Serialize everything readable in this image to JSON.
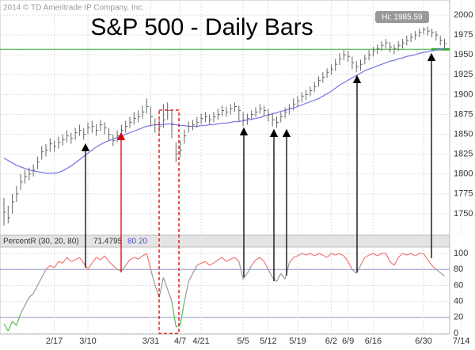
{
  "chart_data": {
    "type": "ohlc",
    "title": "S&P 500 - Daily Bars",
    "note": "2014 © TD Ameritrade IP Company, Inc.",
    "hi_label": "Hi: 1985.59",
    "bar_color": "#666",
    "grid": true,
    "categories": [
      null,
      null,
      null,
      null,
      null,
      null,
      null,
      null,
      null,
      null,
      null,
      null,
      "2/17",
      null,
      null,
      null,
      null,
      null,
      null,
      null,
      "3/10",
      null,
      null,
      null,
      null,
      null,
      null,
      null,
      null,
      null,
      null,
      null,
      null,
      null,
      null,
      "3/31",
      null,
      null,
      null,
      null,
      null,
      null,
      "4/7",
      null,
      null,
      null,
      null,
      "4/21",
      null,
      null,
      null,
      null,
      null,
      null,
      null,
      null,
      null,
      "5/5",
      null,
      null,
      null,
      null,
      null,
      "5/12",
      null,
      null,
      null,
      null,
      null,
      null,
      "5/19",
      null,
      null,
      null,
      null,
      null,
      null,
      null,
      "6/2",
      null,
      null,
      null,
      "6/9",
      null,
      null,
      null,
      null,
      null,
      "6/16",
      null,
      null,
      null,
      null,
      null,
      null,
      null,
      null,
      null,
      null,
      null,
      "6/30",
      null,
      null,
      null,
      null,
      null,
      null,
      null,
      null,
      "7/14"
    ],
    "high": [
      1770,
      1760,
      1775,
      1785,
      1800,
      1805,
      1808,
      1812,
      1822,
      1835,
      1838,
      1845,
      1842,
      1847,
      1850,
      1855,
      1852,
      1858,
      1862,
      1858,
      1865,
      1867,
      1863,
      1868,
      1865,
      1858,
      1850,
      1855,
      1862,
      1867,
      1872,
      1878,
      1880,
      1886,
      1895,
      1885,
      1870,
      1868,
      1888,
      1890,
      1880,
      1840,
      1842,
      1856,
      1866,
      1868,
      1872,
      1876,
      1878,
      1875,
      1878,
      1882,
      1886,
      1885,
      1888,
      1890,
      1886,
      1878,
      1876,
      1880,
      1884,
      1888,
      1886,
      1882,
      1876,
      1872,
      1878,
      1884,
      1888,
      1895,
      1898,
      1903,
      1906,
      1910,
      1916,
      1923,
      1928,
      1933,
      1938,
      1945,
      1952,
      1956,
      1955,
      1948,
      1942,
      1944,
      1950,
      1956,
      1960,
      1963,
      1967,
      1970,
      1966,
      1963,
      1967,
      1970,
      1974,
      1977,
      1980,
      1983,
      1984.5,
      1985.59,
      1983,
      1980,
      1974,
      1970,
      null,
      null,
      null,
      null
    ],
    "low": [
      1735,
      1738,
      1750,
      1765,
      1780,
      1788,
      1792,
      1797,
      1806,
      1818,
      1822,
      1828,
      1828,
      1832,
      1836,
      1840,
      1838,
      1843,
      1848,
      1843,
      1850,
      1852,
      1848,
      1854,
      1850,
      1842,
      1835,
      1840,
      1847,
      1852,
      1858,
      1862,
      1865,
      1870,
      1876,
      1860,
      1852,
      1852,
      1858,
      1868,
      1845,
      1815,
      1822,
      1838,
      1852,
      1855,
      1858,
      1863,
      1865,
      1862,
      1865,
      1868,
      1873,
      1872,
      1875,
      1878,
      1866,
      1860,
      1862,
      1868,
      1872,
      1876,
      1873,
      1866,
      1860,
      1858,
      1865,
      1870,
      1875,
      1880,
      1885,
      1890,
      1893,
      1898,
      1903,
      1910,
      1915,
      1921,
      1925,
      1930,
      1937,
      1943,
      1941,
      1932,
      1928,
      1930,
      1938,
      1943,
      1948,
      1951,
      1955,
      1958,
      1953,
      1951,
      1955,
      1958,
      1962,
      1966,
      1969,
      1972,
      1976,
      1974,
      1972,
      1968,
      1962,
      1958,
      null,
      null,
      null,
      null
    ],
    "close": [
      1752,
      1745,
      1765,
      1775,
      1790,
      1797,
      1800,
      1805,
      1815,
      1828,
      1830,
      1838,
      1835,
      1840,
      1843,
      1848,
      1845,
      1852,
      1855,
      1850,
      1858,
      1860,
      1855,
      1862,
      1858,
      1850,
      1842,
      1848,
      1855,
      1860,
      1865,
      1870,
      1872,
      1878,
      1885,
      1872,
      1862,
      1860,
      1868,
      1880,
      1862,
      1825,
      1830,
      1848,
      1860,
      1862,
      1865,
      1870,
      1872,
      1868,
      1872,
      1875,
      1880,
      1878,
      1882,
      1885,
      1880,
      1868,
      1870,
      1875,
      1878,
      1882,
      1880,
      1875,
      1868,
      1865,
      1872,
      1878,
      1882,
      1888,
      1892,
      1898,
      1900,
      1905,
      1910,
      1918,
      1922,
      1928,
      1932,
      1938,
      1945,
      1950,
      1948,
      1940,
      1935,
      1938,
      1945,
      1950,
      1955,
      1958,
      1962,
      1965,
      1960,
      1958,
      1962,
      1965,
      1968,
      1972,
      1975,
      1978,
      1982,
      1980,
      1978,
      1975,
      1968,
      1964,
      null,
      null,
      null,
      null
    ],
    "moving_average": {
      "color": "#7b7be8",
      "values": [
        1820,
        1817,
        1814,
        1811,
        1809,
        1807,
        1805,
        1804,
        1803,
        1802,
        1801,
        1801,
        1801,
        1802,
        1804,
        1807,
        1810,
        1814,
        1818,
        1822,
        1826,
        1830,
        1834,
        1837,
        1840,
        1842,
        1844,
        1846,
        1848,
        1850,
        1852,
        1854,
        1856,
        1858,
        1860,
        1861,
        1862,
        1862,
        1862,
        1863,
        1863,
        1862,
        1861,
        1861,
        1860,
        1860,
        1860,
        1861,
        1861,
        1862,
        1862,
        1863,
        1864,
        1864,
        1865,
        1866,
        1866,
        1867,
        1868,
        1869,
        1870,
        1871,
        1873,
        1874,
        1876,
        1877,
        1879,
        1880,
        1882,
        1883,
        1885,
        1887,
        1889,
        1891,
        1893,
        1895,
        1898,
        1901,
        1904,
        1908,
        1912,
        1915,
        1918,
        1921,
        1924,
        1927,
        1930,
        1932,
        1934,
        1936,
        1938,
        1940,
        1942,
        1943,
        1945,
        1946,
        1948,
        1949,
        1950,
        1952,
        1953,
        1954,
        1955,
        1956,
        1957,
        1958,
        null,
        null,
        null,
        null
      ]
    },
    "reference_line": {
      "value": 1957,
      "color": "#3a3"
    },
    "ylim": [
      1723,
      2019
    ],
    "yticks": [
      1750,
      1775,
      1800,
      1825,
      1850,
      1875,
      1900,
      1925,
      1950,
      1975,
      2000
    ],
    "indicator": {
      "type": "line",
      "title": "PercentR (30, 20, 80)",
      "levels": [
        80,
        20
      ],
      "level_color": "#99c",
      "colors": {
        "above": "#e77",
        "between": "#999",
        "below": "#5b5"
      },
      "values": [
        12,
        3,
        15,
        10,
        25,
        35,
        45,
        50,
        60,
        70,
        80,
        85,
        82,
        90,
        88,
        95,
        90,
        92,
        95,
        88,
        80,
        88,
        95,
        92,
        97,
        90,
        85,
        80,
        78,
        85,
        92,
        95,
        93,
        97,
        100,
        80,
        60,
        45,
        70,
        55,
        40,
        8,
        10,
        40,
        65,
        75,
        85,
        88,
        90,
        85,
        88,
        92,
        95,
        90,
        93,
        95,
        90,
        68,
        75,
        85,
        92,
        95,
        90,
        80,
        70,
        65,
        75,
        68,
        88,
        95,
        97,
        100,
        98,
        100,
        97,
        100,
        98,
        95,
        100,
        98,
        100,
        97,
        90,
        80,
        75,
        85,
        95,
        98,
        100,
        97,
        100,
        100,
        90,
        85,
        95,
        100,
        98,
        100,
        97,
        100,
        100,
        92,
        85,
        80,
        76,
        71.4795,
        null,
        null,
        null,
        null
      ],
      "ylim": [
        -1,
        108
      ],
      "yticks": [
        0,
        20,
        40,
        60,
        80,
        100
      ]
    }
  }
}
